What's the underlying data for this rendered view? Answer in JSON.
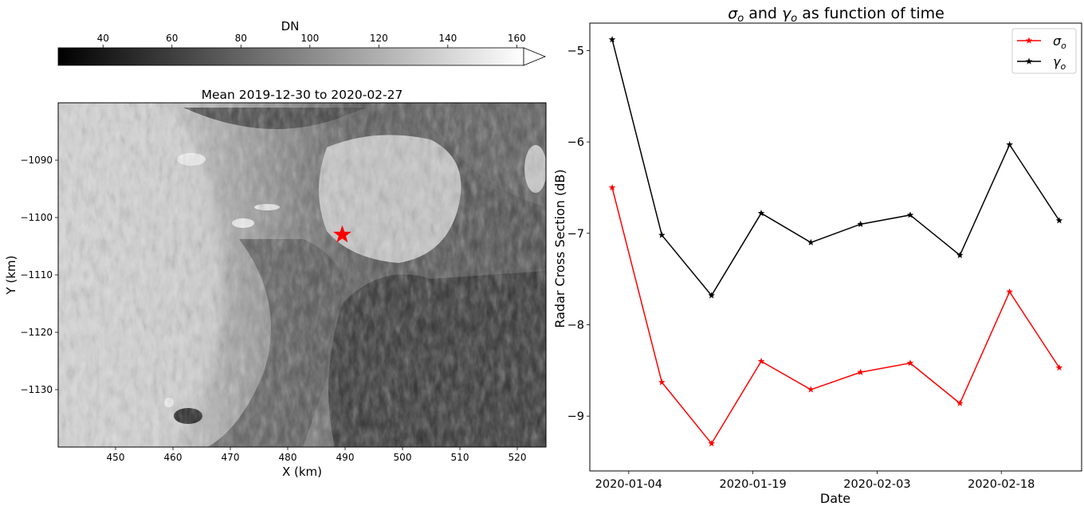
{
  "chart_data": [
    {
      "type": "heatmap",
      "title": "Mean 2019-12-30 to 2020-02-27",
      "xlabel": "X (km)",
      "ylabel": "Y (km)",
      "xlim": [
        440,
        525
      ],
      "ylim": [
        -1140,
        -1080
      ],
      "x_ticks": [
        "450",
        "460",
        "470",
        "480",
        "490",
        "500",
        "510",
        "520"
      ],
      "y_ticks": [
        "−1090",
        "−1100",
        "−1110",
        "−1120",
        "−1130"
      ],
      "marker": {
        "x": 489.5,
        "y": -1103,
        "symbol": "star",
        "color": "#ff0000"
      },
      "colorbar": {
        "label": "DN",
        "range": [
          27,
          162
        ],
        "ticks": [
          "40",
          "60",
          "80",
          "100",
          "120",
          "140",
          "160"
        ],
        "colormap": "gray",
        "extend": "max",
        "placement": "top"
      }
    },
    {
      "type": "line",
      "title_parts": {
        "sigma": "σ",
        "sub_o": "o",
        "mid": " and ",
        "gamma": "γ",
        "tail": " as function of time"
      },
      "xlabel": "Date",
      "ylabel": "Radar Cross Section (dB)",
      "x_ticks": [
        "2020-01-04",
        "2020-01-19",
        "2020-02-03",
        "2020-02-18"
      ],
      "y_ticks": [
        "−5",
        "−6",
        "−7",
        "−8",
        "−9"
      ],
      "ylim": [
        -9.6,
        -4.7
      ],
      "x": [
        "2020-01-02",
        "2020-01-08",
        "2020-01-14",
        "2020-01-20",
        "2020-01-26",
        "2020-02-01",
        "2020-02-07",
        "2020-02-13",
        "2020-02-19",
        "2020-02-25"
      ],
      "grid": false,
      "legend": "top-right",
      "series": [
        {
          "name": "σ",
          "sub": "o",
          "color": "#ff0000",
          "marker": "star",
          "values": [
            -6.5,
            -8.63,
            -9.3,
            -8.4,
            -8.71,
            -8.52,
            -8.42,
            -8.86,
            -7.64,
            -8.47
          ]
        },
        {
          "name": "γ",
          "sub": "o",
          "color": "#000000",
          "marker": "star",
          "values": [
            -4.88,
            -7.02,
            -7.68,
            -6.78,
            -7.1,
            -6.9,
            -6.8,
            -7.24,
            -6.03,
            -6.86
          ]
        }
      ]
    }
  ]
}
